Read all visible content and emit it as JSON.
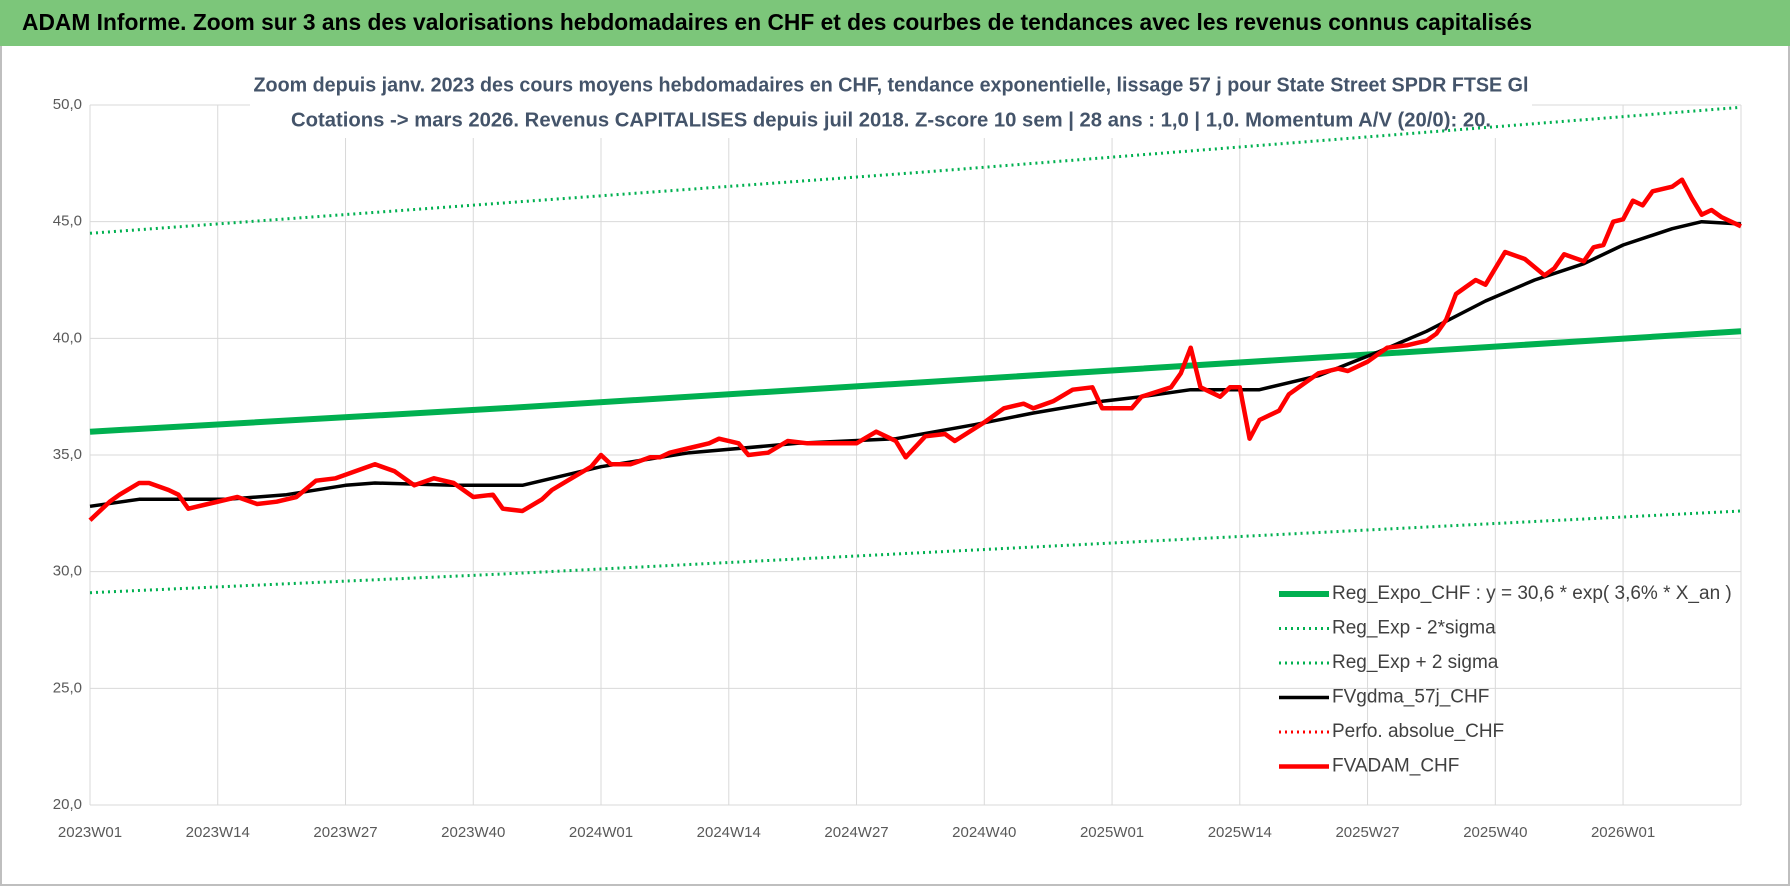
{
  "chart_data": {
    "type": "line",
    "title": "ADAM Informe. Zoom sur 3 ans des valorisations hebdomadaires en CHF et des courbes de tendances avec les revenus connus capitalisés",
    "subtitle": [
      "Zoom depuis janv. 2023 des cours moyens hebdomadaires en CHF, tendance exponentielle, lissage 57 j pour State Street SPDR FTSE Gl",
      "Cotations -> mars 2026. Revenus CAPITALISES depuis juil 2018. Z-score 10 sem | 28 ans : 1,0 | 1,0. Momentum A/V (20/0): 20."
    ],
    "xlim": [
      0,
      168
    ],
    "xticks": [
      {
        "value": 0,
        "label": "2023W01"
      },
      {
        "value": 13,
        "label": "2023W14"
      },
      {
        "value": 26,
        "label": "2023W27"
      },
      {
        "value": 39,
        "label": "2023W40"
      },
      {
        "value": 52,
        "label": "2024W01"
      },
      {
        "value": 65,
        "label": "2024W14"
      },
      {
        "value": 78,
        "label": "2024W27"
      },
      {
        "value": 91,
        "label": "2024W40"
      },
      {
        "value": 104,
        "label": "2025W01"
      },
      {
        "value": 117,
        "label": "2025W14"
      },
      {
        "value": 130,
        "label": "2025W27"
      },
      {
        "value": 143,
        "label": "2025W40"
      },
      {
        "value": 156,
        "label": "2026W01"
      }
    ],
    "ylim": [
      20,
      50
    ],
    "yticks": [
      {
        "value": 20,
        "label": "20,0"
      },
      {
        "value": 25,
        "label": "25,0"
      },
      {
        "value": 30,
        "label": "30,0"
      },
      {
        "value": 35,
        "label": "35,0"
      },
      {
        "value": 40,
        "label": "40,0"
      },
      {
        "value": 45,
        "label": "45,0"
      },
      {
        "value": 50,
        "label": "50,0"
      }
    ],
    "grid": true,
    "legend": "lower right",
    "series": [
      {
        "name": "Reg_Expo_CHF : y = 30,6 * exp( 3,6% *  X_an )",
        "color": "#00b050",
        "dash": "solid",
        "x": [
          0,
          42,
          84,
          126,
          168
        ],
        "values": [
          36.0,
          37.0,
          38.1,
          39.2,
          40.3
        ]
      },
      {
        "name": "Reg_Exp - 2*sigma",
        "color": "#00b050",
        "dash": "dotted",
        "x": [
          0,
          42,
          84,
          126,
          168
        ],
        "values": [
          29.1,
          29.9,
          30.8,
          31.7,
          32.6
        ]
      },
      {
        "name": "Reg_Exp + 2 sigma",
        "color": "#00b050",
        "dash": "dotted",
        "x": [
          0,
          42,
          84,
          126,
          168
        ],
        "values": [
          44.5,
          45.8,
          47.1,
          48.5,
          49.9
        ]
      },
      {
        "name": "FVgdma_57j_CHF",
        "color": "#000000",
        "dash": "solid",
        "x": [
          0,
          5,
          14,
          20,
          26,
          29,
          37,
          44,
          49,
          52,
          61,
          72,
          82,
          90,
          96,
          103,
          107,
          112,
          114,
          119,
          125,
          131,
          136,
          142,
          147,
          152,
          156,
          161,
          164,
          168
        ],
        "values": [
          32.8,
          33.1,
          33.1,
          33.3,
          33.7,
          33.8,
          33.7,
          33.7,
          34.2,
          34.5,
          35.1,
          35.5,
          35.7,
          36.3,
          36.8,
          37.3,
          37.5,
          37.8,
          37.8,
          37.8,
          38.4,
          39.4,
          40.3,
          41.6,
          42.5,
          43.2,
          44.0,
          44.7,
          45.0,
          44.9
        ]
      },
      {
        "name": "Perfo. absolue_CHF",
        "color": "#ff0000",
        "dash": "dotted",
        "x": [],
        "values": []
      },
      {
        "name": "FVADAM_CHF",
        "color": "#ff0000",
        "dash": "solid",
        "x": [
          0,
          2,
          3,
          5,
          6,
          8,
          9,
          10,
          12,
          15,
          17,
          19,
          21,
          23,
          25,
          27,
          29,
          31,
          33,
          35,
          37,
          39,
          41,
          42,
          44,
          46,
          47,
          49,
          51,
          52,
          53,
          55,
          57,
          58,
          59,
          61,
          63,
          64,
          66,
          67,
          69,
          71,
          73,
          76,
          78,
          80,
          82,
          83,
          85,
          87,
          88,
          91,
          93,
          95,
          96,
          98,
          100,
          102,
          103,
          106,
          107,
          110,
          111,
          112,
          113,
          115,
          116,
          117,
          118,
          119,
          121,
          122,
          124,
          125,
          127,
          128,
          130,
          131,
          132,
          134,
          136,
          137,
          138,
          139,
          140,
          141,
          142,
          144,
          146,
          148,
          149,
          150,
          152,
          153,
          154,
          155,
          156,
          157,
          158,
          159,
          161,
          162,
          163,
          164,
          165,
          166,
          168
        ],
        "values": [
          32.2,
          33.0,
          33.3,
          33.8,
          33.8,
          33.5,
          33.3,
          32.7,
          32.9,
          33.2,
          32.9,
          33.0,
          33.2,
          33.9,
          34.0,
          34.3,
          34.6,
          34.3,
          33.7,
          34.0,
          33.8,
          33.2,
          33.3,
          32.7,
          32.6,
          33.1,
          33.5,
          34.0,
          34.5,
          35.0,
          34.6,
          34.6,
          34.9,
          34.9,
          35.1,
          35.3,
          35.5,
          35.7,
          35.5,
          35.0,
          35.1,
          35.6,
          35.5,
          35.5,
          35.5,
          36.0,
          35.6,
          34.9,
          35.8,
          35.9,
          35.6,
          36.4,
          37.0,
          37.2,
          37.0,
          37.3,
          37.8,
          37.9,
          37.0,
          37.0,
          37.5,
          37.9,
          38.5,
          39.6,
          37.9,
          37.5,
          37.9,
          37.9,
          35.7,
          36.5,
          36.9,
          37.6,
          38.2,
          38.5,
          38.7,
          38.6,
          39.0,
          39.3,
          39.6,
          39.7,
          39.9,
          40.2,
          40.8,
          41.9,
          42.2,
          42.5,
          42.3,
          43.7,
          43.4,
          42.7,
          43.0,
          43.6,
          43.3,
          43.9,
          44.0,
          45.0,
          45.1,
          45.9,
          45.7,
          46.3,
          46.5,
          46.8,
          46.0,
          45.3,
          45.5,
          45.2,
          44.8
        ]
      }
    ]
  }
}
